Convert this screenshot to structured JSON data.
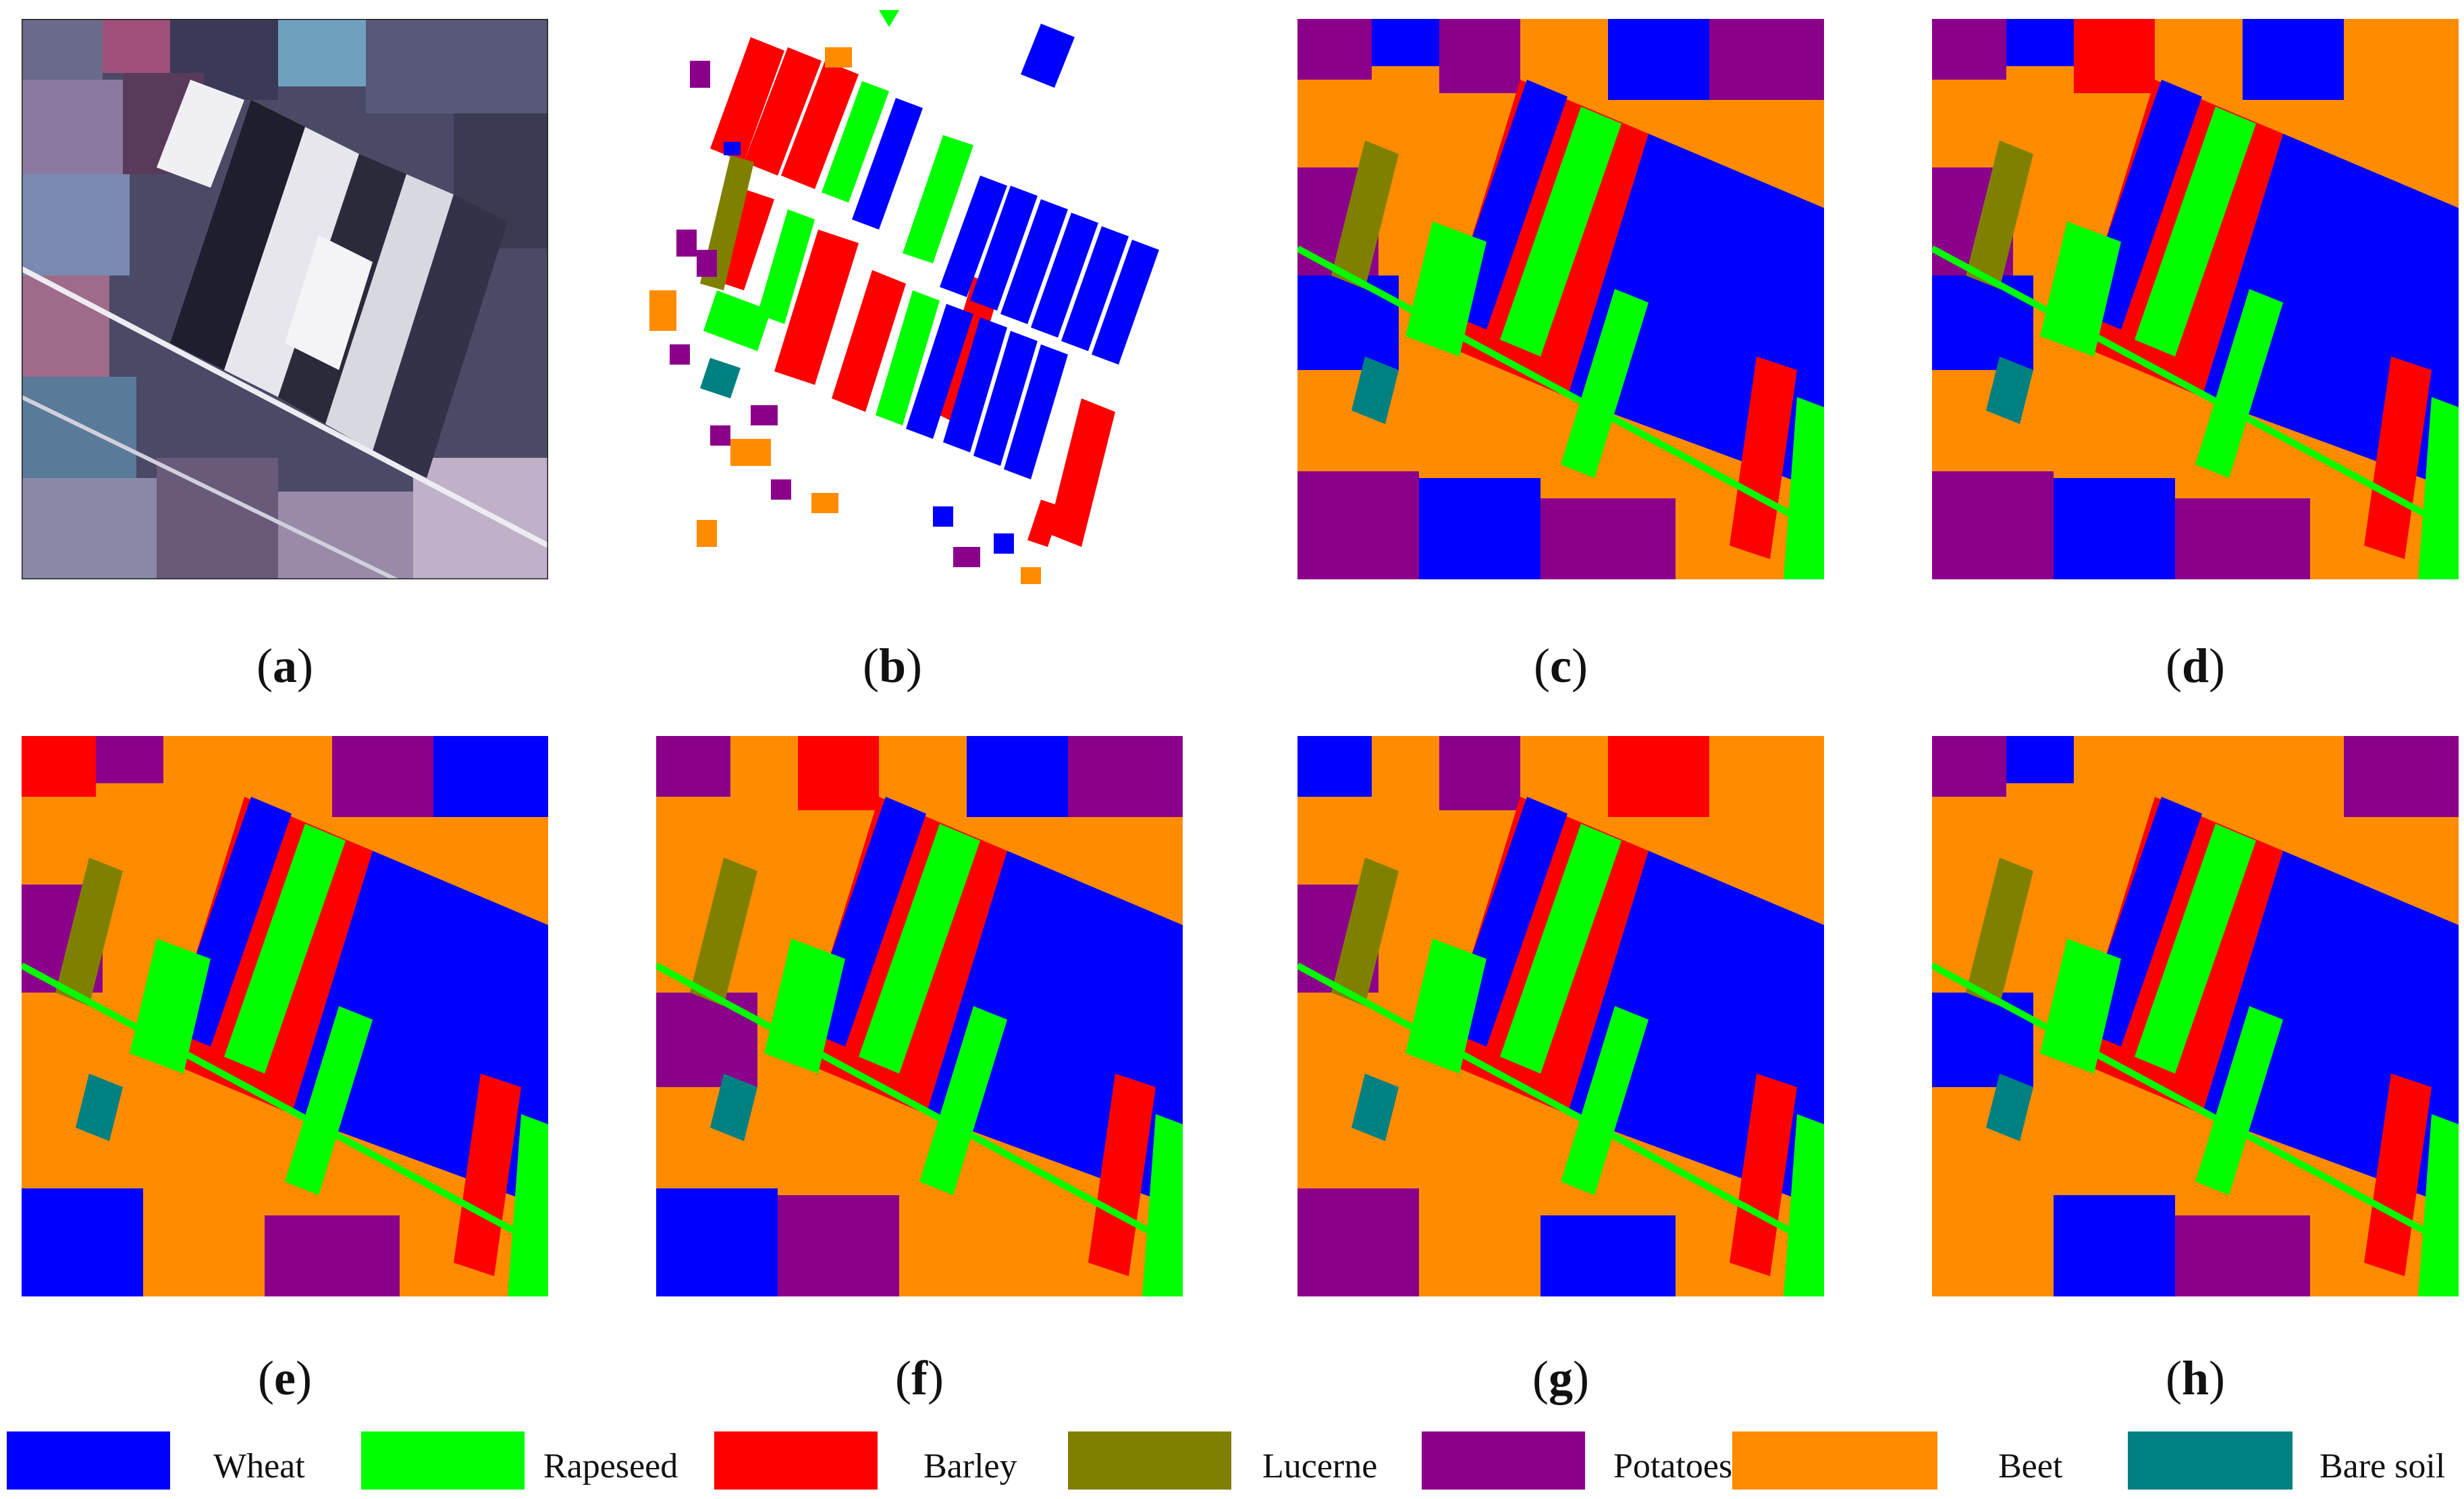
{
  "figure": {
    "panels": [
      {
        "id": "a",
        "caption_label": "a",
        "kind": "sar-image"
      },
      {
        "id": "b",
        "caption_label": "b",
        "kind": "ground-truth"
      },
      {
        "id": "c",
        "caption_label": "c",
        "kind": "classification-map"
      },
      {
        "id": "d",
        "caption_label": "d",
        "kind": "classification-map"
      },
      {
        "id": "e",
        "caption_label": "e",
        "kind": "classification-map"
      },
      {
        "id": "f",
        "caption_label": "f",
        "kind": "classification-map"
      },
      {
        "id": "g",
        "caption_label": "g",
        "kind": "classification-map"
      },
      {
        "id": "h",
        "caption_label": "h",
        "kind": "classification-map"
      }
    ],
    "caption_open": "(",
    "caption_close": ")"
  },
  "legend": [
    {
      "label": "Wheat",
      "color": "#0000ff"
    },
    {
      "label": "Rapeseed",
      "color": "#00ff00"
    },
    {
      "label": "Barley",
      "color": "#ff0000"
    },
    {
      "label": "Lucerne",
      "color": "#808000"
    },
    {
      "label": "Potatoes",
      "color": "#8b008b"
    },
    {
      "label": "Beet",
      "color": "#ff8c00"
    },
    {
      "label": "Bare soil",
      "color": "#008080"
    }
  ],
  "colors": {
    "background": "#ffffff",
    "sar_dark": "#2a2a40",
    "sar_mid": "#6a6a8a",
    "sar_light": "#e6e6ec",
    "sar_pink": "#a0507a",
    "sar_cyan": "#70a0c0"
  }
}
